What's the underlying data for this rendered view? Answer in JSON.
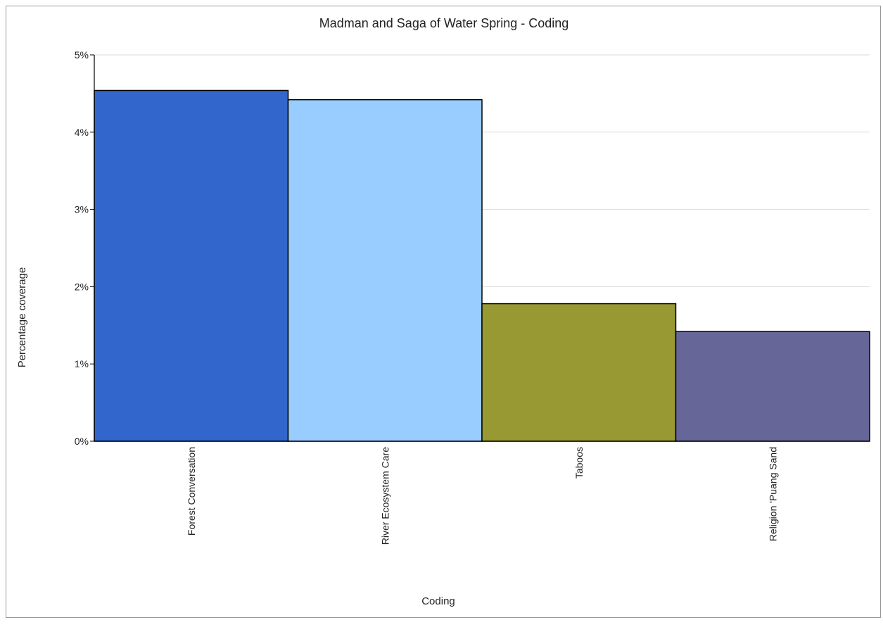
{
  "chart_data": {
    "type": "bar",
    "title": "Madman and Saga of Water Spring - Coding",
    "xlabel": "Coding",
    "ylabel": "Percentage coverage",
    "ylim": [
      0,
      5
    ],
    "y_tick_values": [
      0,
      1,
      2,
      3,
      4,
      5
    ],
    "y_tick_labels": [
      "0%",
      "1%",
      "2%",
      "3%",
      "4%",
      "5%"
    ],
    "grid": true,
    "legend": "none",
    "categories": [
      "Forest Conversation",
      "River Ecosystem Care",
      "Taboos",
      "Religion 'Puang Sand"
    ],
    "values": [
      4.54,
      4.42,
      1.78,
      1.42
    ],
    "colors": [
      "#3366cc",
      "#99ccff",
      "#999933",
      "#666699"
    ]
  }
}
